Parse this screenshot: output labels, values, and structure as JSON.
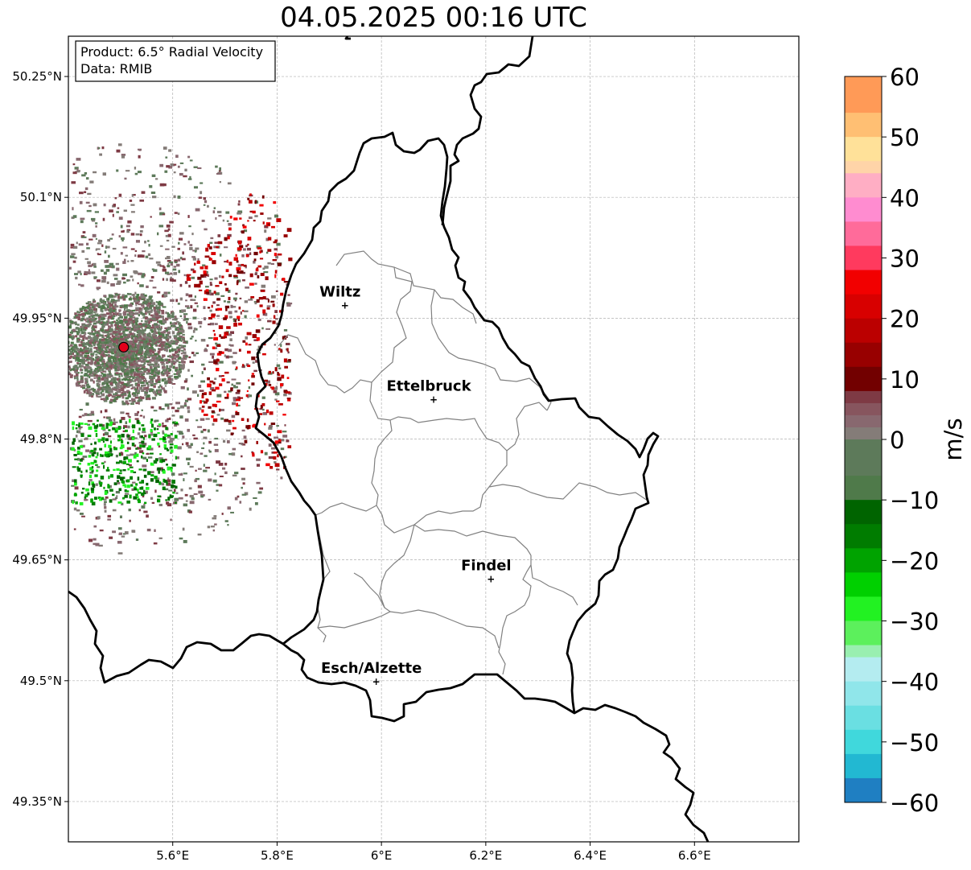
{
  "title": "04.05.2025 00:16 UTC",
  "info_box": {
    "line1": "Product: 6.5° Radial Velocity",
    "line2": "Data: RMIB"
  },
  "map": {
    "lon_range": [
      5.4,
      6.8
    ],
    "lat_range": [
      49.3,
      50.3
    ],
    "lon_ticks": [
      {
        "value": 5.6,
        "label": "5.6°E"
      },
      {
        "value": 5.8,
        "label": "5.8°E"
      },
      {
        "value": 6.0,
        "label": "6°E"
      },
      {
        "value": 6.2,
        "label": "6.2°E"
      },
      {
        "value": 6.4,
        "label": "6.4°E"
      },
      {
        "value": 6.6,
        "label": "6.6°E"
      }
    ],
    "lat_ticks": [
      {
        "value": 50.25,
        "label": "50.25°N"
      },
      {
        "value": 50.1,
        "label": "50.1°N"
      },
      {
        "value": 49.95,
        "label": "49.95°N"
      },
      {
        "value": 49.8,
        "label": "49.8°N"
      },
      {
        "value": 49.65,
        "label": "49.65°N"
      },
      {
        "value": 49.5,
        "label": "49.5°N"
      },
      {
        "value": 49.35,
        "label": "49.35°N"
      }
    ],
    "grid": true,
    "radar_site": {
      "lon": 5.506,
      "lat": 49.914,
      "color": "#e3001b"
    },
    "cities": [
      {
        "name": "Wiltz",
        "lon": 5.93,
        "lat": 49.967
      },
      {
        "name": "Ettelbruck",
        "lon": 6.1,
        "lat": 49.85
      },
      {
        "name": "Findel",
        "lon": 6.21,
        "lat": 49.627
      },
      {
        "name": "Esch/Alzette",
        "lon": 5.99,
        "lat": 49.5
      }
    ]
  },
  "colorbar": {
    "label": "m/s",
    "min": -60,
    "max": 60,
    "ticks": [
      {
        "value": 60,
        "label": "60"
      },
      {
        "value": 50,
        "label": "50"
      },
      {
        "value": 40,
        "label": "40"
      },
      {
        "value": 30,
        "label": "30"
      },
      {
        "value": 20,
        "label": "20"
      },
      {
        "value": 10,
        "label": "10"
      },
      {
        "value": 0,
        "label": "0"
      },
      {
        "value": -10,
        "label": "−10"
      },
      {
        "value": -20,
        "label": "−20"
      },
      {
        "value": -30,
        "label": "−30"
      },
      {
        "value": -40,
        "label": "−40"
      },
      {
        "value": -50,
        "label": "−50"
      },
      {
        "value": -60,
        "label": "−60"
      }
    ],
    "stops": [
      {
        "from": 54,
        "to": 60,
        "color": "#ff9a57"
      },
      {
        "from": 50,
        "to": 54,
        "color": "#ffbf73"
      },
      {
        "from": 46,
        "to": 50,
        "color": "#ffe199"
      },
      {
        "from": 44,
        "to": 46,
        "color": "#ffd4a8"
      },
      {
        "from": 40,
        "to": 44,
        "color": "#ffaec4"
      },
      {
        "from": 36,
        "to": 40,
        "color": "#ff8cd0"
      },
      {
        "from": 32,
        "to": 36,
        "color": "#ff6b9a"
      },
      {
        "from": 28,
        "to": 32,
        "color": "#ff3a5e"
      },
      {
        "from": 24,
        "to": 28,
        "color": "#f20000"
      },
      {
        "from": 20,
        "to": 24,
        "color": "#d80000"
      },
      {
        "from": 16,
        "to": 20,
        "color": "#bb0000"
      },
      {
        "from": 12,
        "to": 16,
        "color": "#980000"
      },
      {
        "from": 8,
        "to": 12,
        "color": "#720000"
      },
      {
        "from": 6,
        "to": 8,
        "color": "#7e3a44"
      },
      {
        "from": 4,
        "to": 6,
        "color": "#87555e"
      },
      {
        "from": 2,
        "to": 4,
        "color": "#88686f"
      },
      {
        "from": 0,
        "to": 2,
        "color": "#847c78"
      },
      {
        "from": -3,
        "to": 0,
        "color": "#6b7e66"
      },
      {
        "from": -6,
        "to": 0,
        "color": "#5d7a5a"
      },
      {
        "from": -10,
        "to": -6,
        "color": "#4f7a4a"
      },
      {
        "from": -14,
        "to": -10,
        "color": "#006400"
      },
      {
        "from": -18,
        "to": -14,
        "color": "#007c00"
      },
      {
        "from": -22,
        "to": -18,
        "color": "#00a300"
      },
      {
        "from": -26,
        "to": -22,
        "color": "#00d000"
      },
      {
        "from": -30,
        "to": -26,
        "color": "#22f222"
      },
      {
        "from": -34,
        "to": -30,
        "color": "#5cf05c"
      },
      {
        "from": -36,
        "to": -34,
        "color": "#99efb0"
      },
      {
        "from": -40,
        "to": -36,
        "color": "#b4ecf0"
      },
      {
        "from": -44,
        "to": -40,
        "color": "#90e6ea"
      },
      {
        "from": -48,
        "to": -44,
        "color": "#6adfe2"
      },
      {
        "from": -52,
        "to": -48,
        "color": "#40d8dc"
      },
      {
        "from": -56,
        "to": -52,
        "color": "#22b8d2"
      },
      {
        "from": -60,
        "to": -56,
        "color": "#1f7fc2"
      }
    ]
  }
}
